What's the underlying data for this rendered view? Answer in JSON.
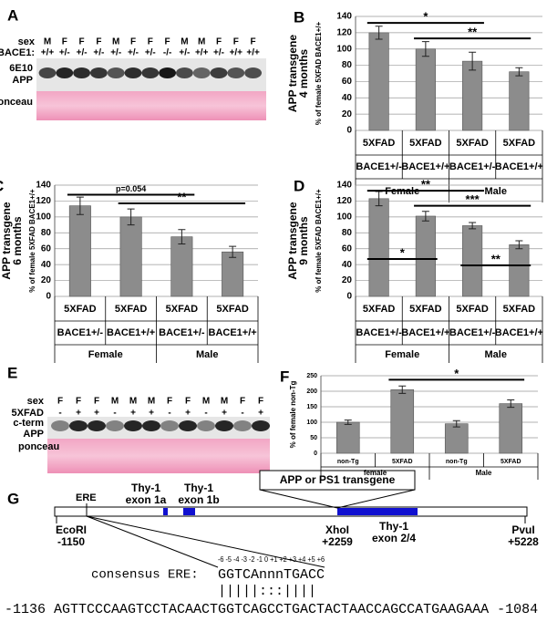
{
  "chart_data": [
    {
      "type": "bar",
      "panel": "B",
      "ylabel": [
        "APP transgene",
        "4 months"
      ],
      "ylabel2": "% of female 5XFAD BACE1+/+",
      "categories": [
        [
          "5XFAD",
          "BACE1+/-"
        ],
        [
          "5XFAD",
          "BACE1+/+"
        ],
        [
          "5XFAD",
          "BACE1+/-"
        ],
        [
          "5XFAD",
          "BACE1+/+"
        ]
      ],
      "groups": [
        "Female",
        "Male"
      ],
      "values": [
        120,
        100,
        85,
        72
      ],
      "errors": [
        8,
        9,
        11,
        5
      ],
      "color": "#8c8c8c",
      "ylim": [
        0,
        140
      ],
      "yticks": [
        0,
        20,
        40,
        60,
        80,
        100,
        120,
        140
      ],
      "grid": true,
      "annotations": [
        {
          "text": "*",
          "from": 0,
          "to": 2,
          "y": 132
        },
        {
          "text": "**",
          "from": 1,
          "to": 3,
          "y": 113
        }
      ]
    },
    {
      "type": "bar",
      "panel": "C",
      "ylabel": [
        "APP transgene",
        "6 months"
      ],
      "ylabel2": "% of female 5XFAD BACE1+/+",
      "categories": [
        [
          "5XFAD",
          "BACE1+/-"
        ],
        [
          "5XFAD",
          "BACE1+/+"
        ],
        [
          "5XFAD",
          "BACE1+/-"
        ],
        [
          "5XFAD",
          "BACE1+/+"
        ]
      ],
      "groups": [
        "Female",
        "Male"
      ],
      "values": [
        114,
        100,
        75,
        56
      ],
      "errors": [
        11,
        10,
        9,
        7
      ],
      "color": "#8c8c8c",
      "ylim": [
        0,
        140
      ],
      "yticks": [
        0,
        20,
        40,
        60,
        80,
        100,
        120,
        140
      ],
      "grid": true,
      "annotations": [
        {
          "text": "p=0.054",
          "from": 0,
          "to": 2,
          "y": 128
        },
        {
          "text": "**",
          "from": 1,
          "to": 3,
          "y": 117
        }
      ]
    },
    {
      "type": "bar",
      "panel": "D",
      "ylabel": [
        "APP transgene",
        "9 months"
      ],
      "ylabel2": "% of female 5XFAD BACE1+/+",
      "categories": [
        [
          "5XFAD",
          "BACE1+/-"
        ],
        [
          "5XFAD",
          "BACE1+/+"
        ],
        [
          "5XFAD",
          "BACE1+/-"
        ],
        [
          "5XFAD",
          "BACE1+/+"
        ]
      ],
      "groups": [
        "Female",
        "Male"
      ],
      "values": [
        123,
        101,
        89,
        65
      ],
      "errors": [
        9,
        6,
        4,
        5
      ],
      "color": "#8c8c8c",
      "ylim": [
        0,
        140
      ],
      "yticks": [
        0,
        20,
        40,
        60,
        80,
        100,
        120,
        140
      ],
      "grid": true,
      "annotations": [
        {
          "text": "**",
          "from": 0,
          "to": 2,
          "y": 133
        },
        {
          "text": "***",
          "from": 1,
          "to": 3,
          "y": 114
        },
        {
          "text": "*",
          "from": 0,
          "to": 1,
          "y": 47
        },
        {
          "text": "**",
          "from": 2,
          "to": 3,
          "y": 39
        }
      ]
    },
    {
      "type": "bar",
      "panel": "F",
      "ylabel2": "% of female non-Tg",
      "categories": [
        "non-Tg",
        "5XFAD",
        "non-Tg",
        "5XFAD"
      ],
      "groups": [
        "female",
        "Male"
      ],
      "values": [
        100,
        205,
        95,
        160
      ],
      "errors": [
        7,
        12,
        10,
        12
      ],
      "color": "#8c8c8c",
      "ylim": [
        0,
        250
      ],
      "yticks": [
        0,
        50,
        100,
        150,
        200,
        250
      ],
      "grid": true,
      "annotations": [
        {
          "text": "*",
          "from": 1,
          "to": 3,
          "y": 237
        }
      ]
    }
  ],
  "blot_a": {
    "panel": "A",
    "row_labels": [
      "sex",
      "BACE1:"
    ],
    "sex": [
      "M",
      "F",
      "F",
      "F",
      "M",
      "F",
      "F",
      "F",
      "M",
      "M",
      "F",
      "F",
      "F"
    ],
    "bace1": [
      "+/+",
      "+/-",
      "+/-",
      "+/-",
      "+/-",
      "+/-",
      "+/-",
      "-/-",
      "+/-",
      "+/+",
      "+/-",
      "+/+",
      "+/+"
    ],
    "band_labels": [
      "6E10",
      "APP"
    ],
    "stain": "ponceau"
  },
  "blot_e": {
    "panel": "E",
    "row_labels": [
      "sex",
      "5XFAD"
    ],
    "sex": [
      "F",
      "F",
      "F",
      "M",
      "M",
      "M",
      "F",
      "F",
      "M",
      "M",
      "F",
      "F"
    ],
    "tg": [
      "-",
      "+",
      "+",
      "-",
      "+",
      "+",
      "-",
      "+",
      "-",
      "+",
      "-",
      "+"
    ],
    "band_labels": [
      "c-term",
      "APP"
    ],
    "stain": "ponceau"
  },
  "gene": {
    "panel": "G",
    "ere": "ERE",
    "exon1a": [
      "Thy-1",
      "exon 1a"
    ],
    "exon1b": [
      "Thy-1",
      "exon 1b"
    ],
    "transgene": "APP or PS1 transgene",
    "ecori": [
      "EcoRI",
      "-1150"
    ],
    "xhoi": [
      "XhoI",
      "+2259"
    ],
    "exon24": [
      "Thy-1",
      "exon 2/4"
    ],
    "pvui": [
      "PvuI",
      "+5228"
    ],
    "positions": "-6 -5 -4 -3 -2 -1  0 +1 +2 +3 +4 +5 +6",
    "consensus_label": "consensus ERE:",
    "consensus": "GGTCAnnnTGACC",
    "match": "|||||:::||||",
    "sequence": "-1136 AGTTCCCAAGTCCTACAACTGGTCAGCCTGACTACTAACCAGCCATGAAGAAA -1084"
  }
}
